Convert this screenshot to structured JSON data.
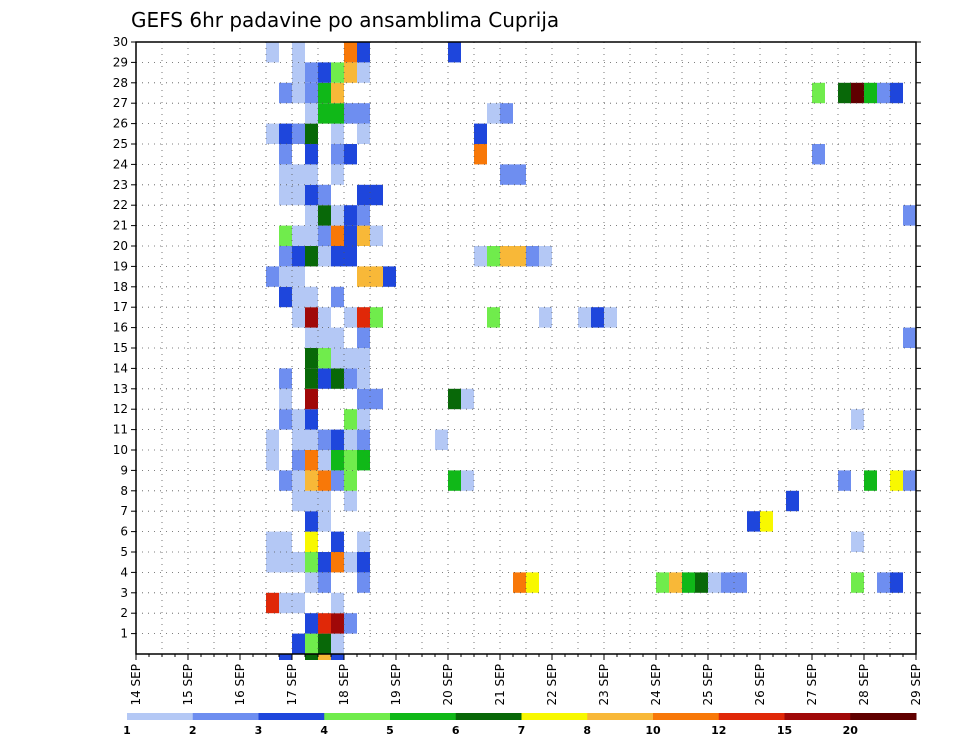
{
  "chart_data": {
    "type": "heatmap",
    "title": "GEFS 6hr padavine po ansamblima Cuprija",
    "xlabel": "",
    "ylabel": "",
    "x_tick_labels": [
      "14 SEP",
      "15 SEP",
      "16 SEP",
      "17 SEP",
      "18 SEP",
      "19 SEP",
      "20 SEP",
      "21 SEP",
      "22 SEP",
      "23 SEP",
      "24 SEP",
      "25 SEP",
      "26 SEP",
      "27 SEP",
      "28 SEP",
      "29 SEP"
    ],
    "y_tick_labels": [
      "1",
      "2",
      "3",
      "4",
      "5",
      "6",
      "7",
      "8",
      "9",
      "10",
      "11",
      "12",
      "13",
      "14",
      "15",
      "16",
      "17",
      "18",
      "19",
      "20",
      "21",
      "22",
      "23",
      "24",
      "25",
      "26",
      "27",
      "28",
      "29",
      "30"
    ],
    "xlim": [
      0,
      15
    ],
    "ylim": [
      0,
      30
    ],
    "cell_width_days": 0.25,
    "grid": true,
    "colorbar": {
      "position": "bottom",
      "tick_labels": [
        "1",
        "2",
        "3",
        "4",
        "5",
        "6",
        "7",
        "8",
        "10",
        "12",
        "15",
        "20"
      ],
      "colors": [
        "#b4c8f5",
        "#6e8ef0",
        "#1e46dc",
        "#70ec4c",
        "#10b818",
        "#086808",
        "#f8f800",
        "#f8b838",
        "#f87808",
        "#e02808",
        "#a00808",
        "#600000"
      ]
    },
    "cells": [
      [
        3,
        0,
        2
      ],
      [
        3.25,
        0,
        3
      ],
      [
        3.5,
        0,
        5
      ],
      [
        3.75,
        0,
        0
      ],
      [
        3.25,
        1,
        2
      ],
      [
        3.5,
        1,
        9
      ],
      [
        3.75,
        1,
        10
      ],
      [
        4,
        1,
        1
      ],
      [
        2.5,
        2,
        9
      ],
      [
        2.75,
        2,
        0
      ],
      [
        3,
        2,
        0
      ],
      [
        3.75,
        2,
        0
      ],
      [
        3.25,
        3,
        0
      ],
      [
        3.5,
        3,
        1
      ],
      [
        4.25,
        3,
        1
      ],
      [
        7.25,
        3,
        8
      ],
      [
        7.5,
        3,
        6
      ],
      [
        10,
        3,
        3
      ],
      [
        10.25,
        3,
        7
      ],
      [
        10.5,
        3,
        4
      ],
      [
        10.75,
        3,
        5
      ],
      [
        11,
        3,
        0
      ],
      [
        11.25,
        3,
        1
      ],
      [
        11.5,
        3,
        1
      ],
      [
        13.75,
        3,
        3
      ],
      [
        14.25,
        3,
        1
      ],
      [
        14.5,
        3,
        2
      ],
      [
        2.5,
        4,
        0
      ],
      [
        2.75,
        4,
        0
      ],
      [
        3,
        4,
        0
      ],
      [
        3.25,
        4,
        3
      ],
      [
        3.5,
        4,
        2
      ],
      [
        3.75,
        4,
        8
      ],
      [
        4,
        4,
        0
      ],
      [
        4.25,
        4,
        2
      ],
      [
        2.5,
        5,
        0
      ],
      [
        2.75,
        5,
        0
      ],
      [
        3.25,
        5,
        6
      ],
      [
        3.75,
        5,
        2
      ],
      [
        4.25,
        5,
        0
      ],
      [
        13.75,
        5,
        0
      ],
      [
        3.25,
        6,
        2
      ],
      [
        3.5,
        6,
        0
      ],
      [
        11.75,
        6,
        2
      ],
      [
        12,
        6,
        6
      ],
      [
        3,
        7,
        0
      ],
      [
        3.25,
        7,
        0
      ],
      [
        3.5,
        7,
        0
      ],
      [
        4,
        7,
        0
      ],
      [
        12.5,
        7,
        2
      ],
      [
        2.75,
        8,
        1
      ],
      [
        3,
        8,
        0
      ],
      [
        3.25,
        8,
        7
      ],
      [
        3.5,
        8,
        8
      ],
      [
        3.75,
        8,
        1
      ],
      [
        4,
        8,
        3
      ],
      [
        6,
        8,
        4
      ],
      [
        6.25,
        8,
        0
      ],
      [
        13.5,
        8,
        1
      ],
      [
        14,
        8,
        4
      ],
      [
        14.5,
        8,
        6
      ],
      [
        14.75,
        8,
        1
      ],
      [
        2.5,
        9,
        0
      ],
      [
        3,
        9,
        1
      ],
      [
        3.25,
        9,
        8
      ],
      [
        3.5,
        9,
        0
      ],
      [
        3.75,
        9,
        4
      ],
      [
        4,
        9,
        3
      ],
      [
        4.25,
        9,
        4
      ],
      [
        2.5,
        10,
        0
      ],
      [
        3,
        10,
        0
      ],
      [
        3.25,
        10,
        0
      ],
      [
        3.5,
        10,
        1
      ],
      [
        3.75,
        10,
        2
      ],
      [
        4,
        10,
        0
      ],
      [
        4.25,
        10,
        1
      ],
      [
        5.75,
        10,
        0
      ],
      [
        2.75,
        11,
        1
      ],
      [
        3,
        11,
        0
      ],
      [
        3.25,
        11,
        2
      ],
      [
        4,
        11,
        3
      ],
      [
        4.25,
        11,
        0
      ],
      [
        13.75,
        11,
        0
      ],
      [
        2.75,
        12,
        0
      ],
      [
        3.25,
        12,
        10
      ],
      [
        4.25,
        12,
        1
      ],
      [
        4.5,
        12,
        1
      ],
      [
        6,
        12,
        5
      ],
      [
        6.25,
        12,
        0
      ],
      [
        2.75,
        13,
        1
      ],
      [
        3.25,
        13,
        5
      ],
      [
        3.5,
        13,
        2
      ],
      [
        3.75,
        13,
        5
      ],
      [
        4,
        13,
        1
      ],
      [
        4.25,
        13,
        0
      ],
      [
        3.25,
        14,
        5
      ],
      [
        3.5,
        14,
        3
      ],
      [
        3.75,
        14,
        0
      ],
      [
        4,
        14,
        0
      ],
      [
        4.25,
        14,
        0
      ],
      [
        3.25,
        15,
        0
      ],
      [
        3.5,
        15,
        0
      ],
      [
        3.75,
        15,
        0
      ],
      [
        4.25,
        15,
        1
      ],
      [
        14.75,
        15,
        1
      ],
      [
        3,
        16,
        0
      ],
      [
        3.25,
        16,
        10
      ],
      [
        3.5,
        16,
        0
      ],
      [
        4,
        16,
        0
      ],
      [
        4.25,
        16,
        9
      ],
      [
        4.5,
        16,
        3
      ],
      [
        6.75,
        16,
        3
      ],
      [
        7.75,
        16,
        0
      ],
      [
        8.5,
        16,
        0
      ],
      [
        8.75,
        16,
        2
      ],
      [
        9,
        16,
        0
      ],
      [
        2.75,
        17,
        2
      ],
      [
        3,
        17,
        0
      ],
      [
        3.25,
        17,
        0
      ],
      [
        3.75,
        17,
        1
      ],
      [
        2.5,
        18,
        1
      ],
      [
        2.75,
        18,
        0
      ],
      [
        3,
        18,
        0
      ],
      [
        4.25,
        18,
        7
      ],
      [
        4.5,
        18,
        7
      ],
      [
        4.75,
        18,
        2
      ],
      [
        2.75,
        19,
        1
      ],
      [
        3,
        19,
        2
      ],
      [
        3.25,
        19,
        5
      ],
      [
        3.5,
        19,
        0
      ],
      [
        3.75,
        19,
        2
      ],
      [
        4,
        19,
        2
      ],
      [
        6.5,
        19,
        0
      ],
      [
        6.75,
        19,
        3
      ],
      [
        7,
        19,
        7
      ],
      [
        7.25,
        19,
        7
      ],
      [
        7.5,
        19,
        1
      ],
      [
        7.75,
        19,
        0
      ],
      [
        2.75,
        20,
        3
      ],
      [
        3,
        20,
        0
      ],
      [
        3.25,
        20,
        0
      ],
      [
        3.5,
        20,
        1
      ],
      [
        3.75,
        20,
        8
      ],
      [
        4,
        20,
        2
      ],
      [
        4.25,
        20,
        7
      ],
      [
        4.5,
        20,
        0
      ],
      [
        3.25,
        21,
        0
      ],
      [
        3.5,
        21,
        5
      ],
      [
        3.75,
        21,
        0
      ],
      [
        4,
        21,
        2
      ],
      [
        4.25,
        21,
        1
      ],
      [
        14.75,
        21,
        1
      ],
      [
        2.75,
        22,
        0
      ],
      [
        3,
        22,
        0
      ],
      [
        3.25,
        22,
        2
      ],
      [
        3.5,
        22,
        1
      ],
      [
        4.25,
        22,
        2
      ],
      [
        4.5,
        22,
        2
      ],
      [
        2.75,
        23,
        0
      ],
      [
        3,
        23,
        0
      ],
      [
        3.25,
        23,
        0
      ],
      [
        3.75,
        23,
        0
      ],
      [
        7,
        23,
        1
      ],
      [
        7.25,
        23,
        1
      ],
      [
        2.75,
        24,
        1
      ],
      [
        3.25,
        24,
        2
      ],
      [
        3.75,
        24,
        1
      ],
      [
        4,
        24,
        2
      ],
      [
        6.5,
        24,
        8
      ],
      [
        13,
        24,
        1
      ],
      [
        2.5,
        25,
        0
      ],
      [
        2.75,
        25,
        2
      ],
      [
        3,
        25,
        1
      ],
      [
        3.25,
        25,
        5
      ],
      [
        3.75,
        25,
        0
      ],
      [
        4.25,
        25,
        0
      ],
      [
        6.5,
        25,
        2
      ],
      [
        3.25,
        26,
        0
      ],
      [
        3.5,
        26,
        4
      ],
      [
        3.75,
        26,
        4
      ],
      [
        4,
        26,
        1
      ],
      [
        4.25,
        26,
        1
      ],
      [
        6.75,
        26,
        0
      ],
      [
        7,
        26,
        1
      ],
      [
        2.75,
        27,
        1
      ],
      [
        3,
        27,
        0
      ],
      [
        3.25,
        27,
        1
      ],
      [
        3.5,
        27,
        4
      ],
      [
        3.75,
        27,
        7
      ],
      [
        13,
        27,
        3
      ],
      [
        13.5,
        27,
        5
      ],
      [
        13.75,
        27,
        11
      ],
      [
        14,
        27,
        4
      ],
      [
        14.25,
        27,
        1
      ],
      [
        14.5,
        27,
        2
      ],
      [
        3,
        28,
        0
      ],
      [
        3.25,
        28,
        1
      ],
      [
        3.5,
        28,
        2
      ],
      [
        3.75,
        28,
        3
      ],
      [
        4,
        28,
        7
      ],
      [
        4.25,
        28,
        0
      ],
      [
        2.5,
        29,
        0
      ],
      [
        3,
        29,
        0
      ],
      [
        4,
        29,
        8
      ],
      [
        4.25,
        29,
        2
      ],
      [
        6,
        29,
        2
      ],
      [
        2.75,
        -1,
        2
      ],
      [
        3.25,
        -1,
        5
      ],
      [
        3.5,
        -1,
        7
      ],
      [
        3.75,
        -1,
        2
      ]
    ]
  }
}
